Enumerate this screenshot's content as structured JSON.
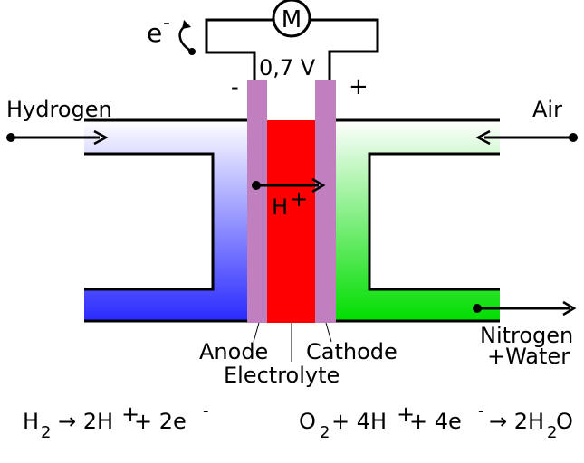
{
  "circuit": {
    "electron_label": "e",
    "electron_sup": "-",
    "motor_label": "M",
    "voltage": "0,7 V",
    "negative": "-",
    "positive": "+"
  },
  "inputs": {
    "left": "Hydrogen",
    "right": "Air"
  },
  "output": {
    "line1": "Nitrogen",
    "line2": "+Water"
  },
  "ion": {
    "label": "H",
    "sup": "+"
  },
  "parts": {
    "anode": "Anode",
    "electrolyte": "Electrolyte",
    "cathode": "Cathode"
  },
  "equations": {
    "anode": {
      "a": "H",
      "a_sub": "2",
      "b": "→ 2H",
      "b_sup": "+",
      "c": " + 2e",
      "c_sup": "-"
    },
    "cathode": {
      "a": "O",
      "a_sub": "2",
      "b": " + 4H",
      "b_sup": "+",
      "c": " + 4e",
      "c_sup": "-",
      "d": "→ 2H",
      "d_sub": "2",
      "e": "O"
    }
  },
  "colors": {
    "hydrogen": "#3333ff",
    "air": "#00dd00",
    "electrode": "#c080c0",
    "electrolyte": "#ff0000"
  }
}
